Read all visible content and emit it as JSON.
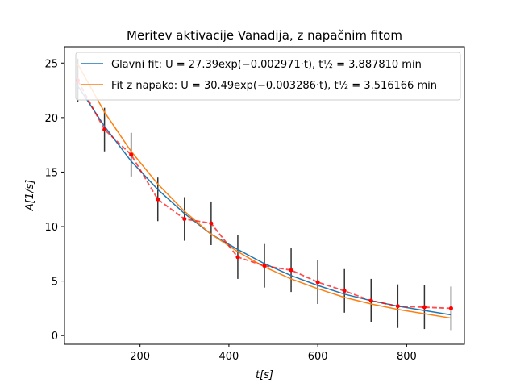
{
  "chart_data": {
    "type": "line",
    "title": "Meritev aktivacije Vanadija, z napačnim fitom",
    "xlabel": "t[s]",
    "ylabel": "A[1/s]",
    "xlim": [
      30,
      930
    ],
    "ylim": [
      -0.8,
      26.5
    ],
    "xticks": [
      200,
      400,
      600,
      800
    ],
    "yticks": [
      0,
      5,
      10,
      15,
      20,
      25
    ],
    "legend_position": "top-right",
    "measurement": {
      "x": [
        60,
        120,
        180,
        240,
        300,
        360,
        420,
        480,
        540,
        600,
        660,
        720,
        780,
        840,
        900
      ],
      "y": [
        23.4,
        18.9,
        16.6,
        12.5,
        10.7,
        10.3,
        7.2,
        6.4,
        6.0,
        4.9,
        4.1,
        3.2,
        2.7,
        2.6,
        2.5
      ],
      "yerr": [
        2.0,
        2.0,
        2.0,
        2.0,
        2.0,
        2.0,
        2.0,
        2.0,
        2.0,
        2.0,
        2.0,
        2.0,
        2.0,
        2.0,
        2.0
      ],
      "color": "#ff0000",
      "error_color": "#333333"
    },
    "series": [
      {
        "name": "Glavni fit: U = 27.39exp(−0.002971·t), t½ = 3.887810 min",
        "color": "#1f77b4",
        "x": [
          60,
          120,
          180,
          240,
          300,
          360,
          420,
          480,
          540,
          600,
          660,
          720,
          780,
          840,
          900
        ],
        "y": [
          22.9,
          19.2,
          16.0,
          13.4,
          11.2,
          9.3,
          7.9,
          6.6,
          5.5,
          4.6,
          3.8,
          3.2,
          2.7,
          2.3,
          1.9
        ]
      },
      {
        "name": "Fit z napako: U = 30.49exp(−0.003286·t), t½ = 3.516166 min",
        "color": "#ff7f0e",
        "x": [
          60,
          120,
          180,
          240,
          300,
          360,
          420,
          480,
          540,
          600,
          660,
          720,
          780,
          840,
          900
        ],
        "y": [
          24.9,
          20.5,
          16.9,
          13.9,
          11.4,
          9.3,
          7.7,
          6.3,
          5.2,
          4.3,
          3.5,
          2.9,
          2.4,
          2.0,
          1.6
        ]
      }
    ]
  }
}
